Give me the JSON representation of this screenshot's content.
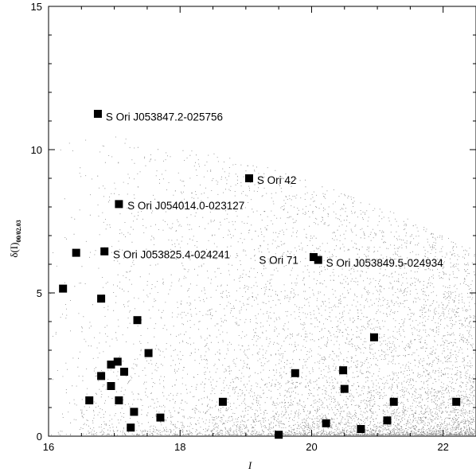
{
  "chart_data": {
    "type": "scatter",
    "xlabel": "I",
    "ylabel": "δ(I)",
    "ylabel_sub": "00/02.03",
    "xlim": [
      16,
      22.5
    ],
    "ylim": [
      0,
      15
    ],
    "xticks": [
      16,
      18,
      20,
      22
    ],
    "yticks": [
      0,
      5,
      10,
      15
    ],
    "grid": false,
    "marker_color": "#000000",
    "series": [
      {
        "marker": "square",
        "points": [
          {
            "x": 16.75,
            "y": 11.25
          },
          {
            "x": 19.05,
            "y": 9.0
          },
          {
            "x": 17.07,
            "y": 8.1
          },
          {
            "x": 16.42,
            "y": 6.4
          },
          {
            "x": 16.85,
            "y": 6.45
          },
          {
            "x": 20.03,
            "y": 6.25
          },
          {
            "x": 20.1,
            "y": 6.15
          },
          {
            "x": 16.22,
            "y": 5.15
          },
          {
            "x": 16.8,
            "y": 4.8
          },
          {
            "x": 17.35,
            "y": 4.05
          },
          {
            "x": 20.95,
            "y": 3.45
          },
          {
            "x": 17.52,
            "y": 2.9
          },
          {
            "x": 17.05,
            "y": 2.6
          },
          {
            "x": 16.95,
            "y": 2.5
          },
          {
            "x": 17.15,
            "y": 2.25
          },
          {
            "x": 19.75,
            "y": 2.2
          },
          {
            "x": 20.48,
            "y": 2.3
          },
          {
            "x": 16.8,
            "y": 2.1
          },
          {
            "x": 16.95,
            "y": 1.75
          },
          {
            "x": 20.5,
            "y": 1.65
          },
          {
            "x": 16.62,
            "y": 1.25
          },
          {
            "x": 17.07,
            "y": 1.25
          },
          {
            "x": 18.65,
            "y": 1.2
          },
          {
            "x": 21.25,
            "y": 1.2
          },
          {
            "x": 22.2,
            "y": 1.2
          },
          {
            "x": 17.3,
            "y": 0.85
          },
          {
            "x": 17.7,
            "y": 0.65
          },
          {
            "x": 21.15,
            "y": 0.55
          },
          {
            "x": 20.22,
            "y": 0.45
          },
          {
            "x": 17.25,
            "y": 0.3
          },
          {
            "x": 20.75,
            "y": 0.25
          },
          {
            "x": 19.5,
            "y": 0.05
          }
        ]
      }
    ],
    "annotations": [
      {
        "text": "S Ori J053847.2-025756",
        "x": 16.87,
        "y": 11.15
      },
      {
        "text": "S Ori 42",
        "x": 19.17,
        "y": 8.95
      },
      {
        "text": "S Ori J054014.0-023127",
        "x": 17.2,
        "y": 8.05
      },
      {
        "text": "S Ori J053825.4-024241",
        "x": 16.98,
        "y": 6.35
      },
      {
        "text": "S Ori 71",
        "x": 19.2,
        "y": 6.15
      },
      {
        "text": "S Ori J053849.5-024934",
        "x": 20.22,
        "y": 6.05
      }
    ]
  }
}
